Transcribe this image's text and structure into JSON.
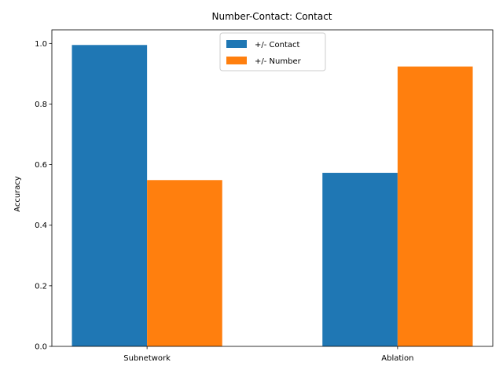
{
  "chart_data": {
    "type": "bar",
    "title": "Number-Contact: Contact",
    "xlabel": "",
    "ylabel": "Accuracy",
    "categories": [
      "Subnetwork",
      "Ablation"
    ],
    "series": [
      {
        "name": "+/- Contact",
        "values": [
          0.995,
          0.573
        ],
        "color": "#1f77b4"
      },
      {
        "name": "+/- Number",
        "values": [
          0.549,
          0.924
        ],
        "color": "#ff7f0e"
      }
    ],
    "ylim": [
      0,
      1.045
    ],
    "yticks": [
      0.0,
      0.2,
      0.4,
      0.6,
      0.8,
      1.0
    ],
    "ytick_labels": [
      "0.0",
      "0.2",
      "0.4",
      "0.6",
      "0.8",
      "1.0"
    ],
    "grid": false,
    "legend_position": "top-center"
  }
}
